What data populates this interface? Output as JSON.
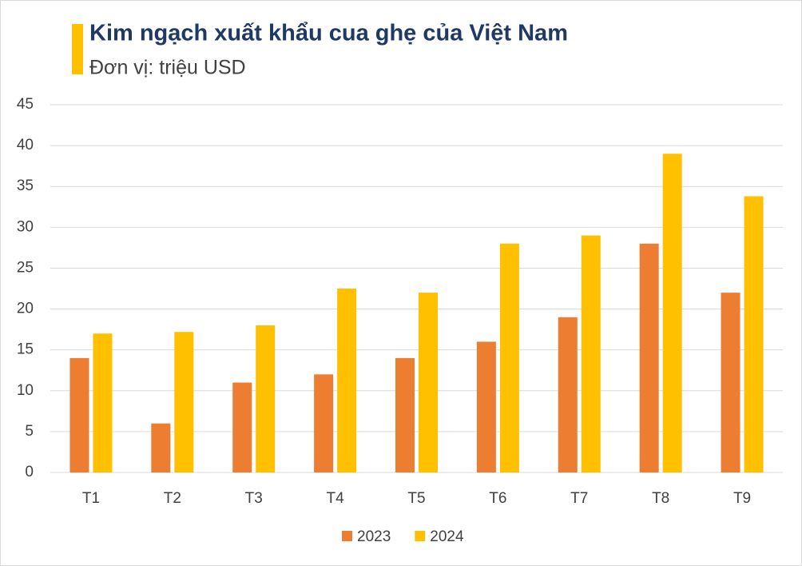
{
  "chart_data": {
    "type": "bar",
    "title": "Kim ngạch xuất khẩu cua ghẹ của Việt Nam",
    "subtitle": "Đơn vị: triệu USD",
    "categories": [
      "T1",
      "T2",
      "T3",
      "T4",
      "T5",
      "T6",
      "T7",
      "T8",
      "T9"
    ],
    "series": [
      {
        "name": "2023",
        "color": "#ed7d31",
        "values": [
          14,
          6,
          11,
          12,
          14,
          16,
          19,
          28,
          22
        ]
      },
      {
        "name": "2024",
        "color": "#ffc000",
        "values": [
          17,
          17.2,
          18,
          22.5,
          22,
          28,
          29,
          39,
          33.8
        ]
      }
    ],
    "ylim": [
      0,
      45
    ],
    "yticks": [
      0,
      5,
      10,
      15,
      20,
      25,
      30,
      35,
      40,
      45
    ],
    "grid": true,
    "legend": "bottom"
  }
}
